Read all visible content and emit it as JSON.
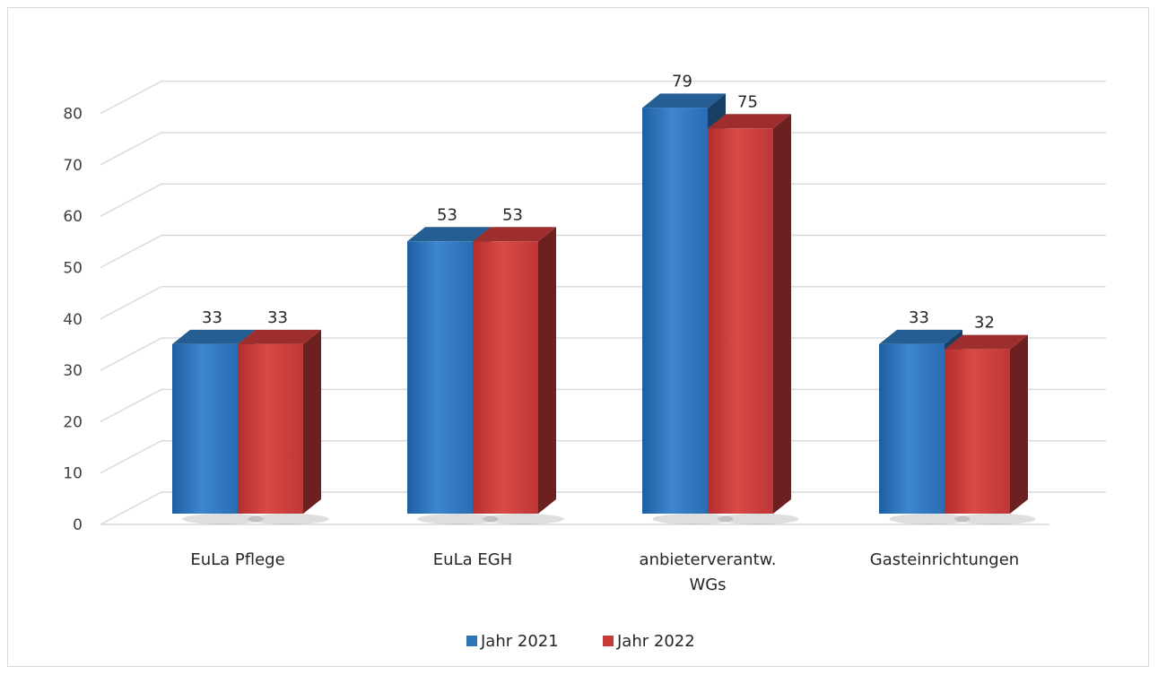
{
  "chart_data": {
    "type": "bar",
    "categories": [
      "EuLa Pflege",
      "EuLa EGH",
      "anbieterverantw. WGs",
      "Gasteinrichtungen"
    ],
    "category_lines": [
      [
        "EuLa Pflege"
      ],
      [
        "EuLa EGH"
      ],
      [
        "anbieterverantw.",
        "WGs"
      ],
      [
        "Gasteinrichtungen"
      ]
    ],
    "series": [
      {
        "name": "Jahr 2021",
        "values": [
          33,
          53,
          79,
          33
        ],
        "color": "#2e75b6"
      },
      {
        "name": "Jahr 2022",
        "values": [
          33,
          53,
          75,
          32
        ],
        "color": "#c63a3a"
      }
    ],
    "y_ticks": [
      "0",
      "10",
      "20",
      "30",
      "40",
      "50",
      "60",
      "70",
      "80"
    ],
    "ylim": [
      0,
      80
    ],
    "grid": true,
    "style": "3d-clustered-column",
    "legend_position": "bottom",
    "title": "",
    "xlabel": "",
    "ylabel": ""
  }
}
